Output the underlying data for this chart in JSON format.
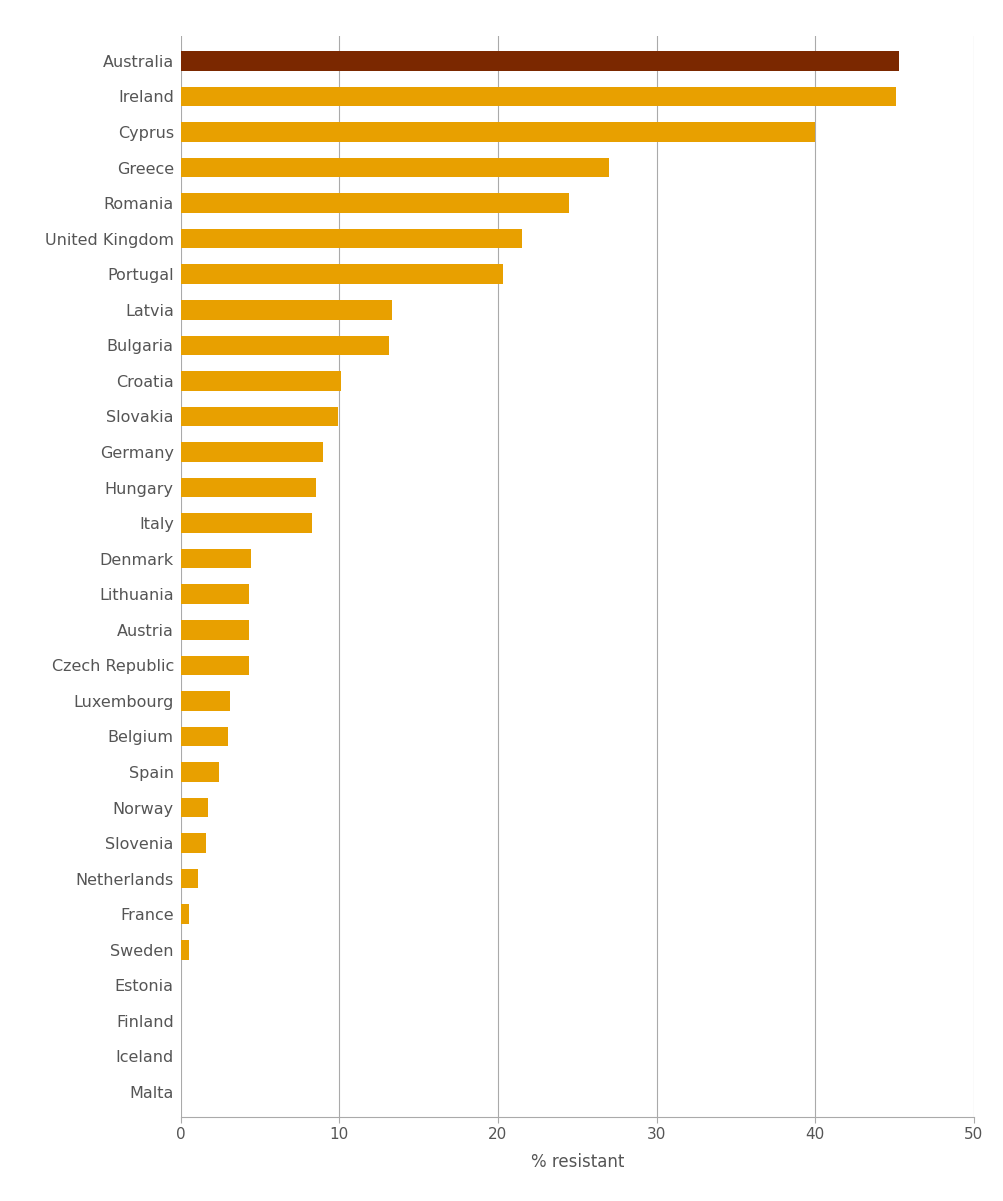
{
  "countries": [
    "Australia",
    "Ireland",
    "Cyprus",
    "Greece",
    "Romania",
    "United Kingdom",
    "Portugal",
    "Latvia",
    "Bulgaria",
    "Croatia",
    "Slovakia",
    "Germany",
    "Hungary",
    "Italy",
    "Denmark",
    "Lithuania",
    "Austria",
    "Czech Republic",
    "Luxembourg",
    "Belgium",
    "Spain",
    "Norway",
    "Slovenia",
    "Netherlands",
    "France",
    "Sweden",
    "Estonia",
    "Finland",
    "Iceland",
    "Malta"
  ],
  "values": [
    45.3,
    45.1,
    40.0,
    27.0,
    24.5,
    21.5,
    20.3,
    13.3,
    13.1,
    10.1,
    9.9,
    9.0,
    8.5,
    8.3,
    4.4,
    4.3,
    4.3,
    4.3,
    3.1,
    3.0,
    2.4,
    1.7,
    1.6,
    1.1,
    0.5,
    0.5,
    0.0,
    0.0,
    0.0,
    0.0
  ],
  "colors": [
    "#7B2800",
    "#E8A000",
    "#E8A000",
    "#E8A000",
    "#E8A000",
    "#E8A000",
    "#E8A000",
    "#E8A000",
    "#E8A000",
    "#E8A000",
    "#E8A000",
    "#E8A000",
    "#E8A000",
    "#E8A000",
    "#E8A000",
    "#E8A000",
    "#E8A000",
    "#E8A000",
    "#E8A000",
    "#E8A000",
    "#E8A000",
    "#E8A000",
    "#E8A000",
    "#E8A000",
    "#E8A000",
    "#E8A000",
    "#E8A000",
    "#E8A000",
    "#E8A000",
    "#E8A000"
  ],
  "xlabel": "% resistant",
  "xlim": [
    0,
    50
  ],
  "xticks": [
    0,
    10,
    20,
    30,
    40,
    50
  ],
  "grid_color": "#AAAAAA",
  "background_color": "#FFFFFF",
  "bar_height": 0.55,
  "figure_width": 10.04,
  "figure_height": 12.01,
  "label_fontsize": 11.5,
  "xlabel_fontsize": 12,
  "xtick_fontsize": 11
}
